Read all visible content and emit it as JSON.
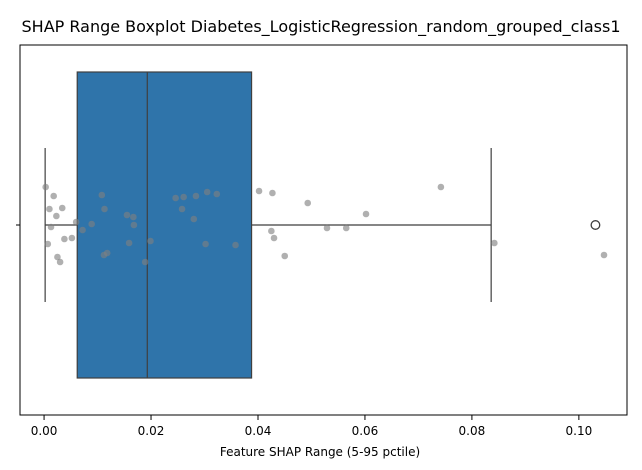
{
  "chart_data": {
    "type": "boxplot",
    "title": "SHAP Range Boxplot Diabetes_LogisticRegression_random_grouped_class1",
    "xlabel": "Feature SHAP Range (5-95 pctile)",
    "ylabel": "",
    "xlim": [
      -0.0045,
      0.109
    ],
    "x_ticks": [
      0.0,
      0.02,
      0.04,
      0.06,
      0.08,
      0.1
    ],
    "x_tick_labels": [
      "0.00",
      "0.02",
      "0.04",
      "0.06",
      "0.08",
      "0.10"
    ],
    "grid": false,
    "legend": "none",
    "box": {
      "whisker_low": 0.0002,
      "q1": 0.0062,
      "median": 0.0193,
      "q3": 0.0388,
      "whisker_high": 0.0836,
      "outliers": [
        0.1031
      ]
    },
    "points": [
      {
        "x": 0.0003,
        "y": 0.38
      },
      {
        "x": 0.0007,
        "y": -0.19
      },
      {
        "x": 0.001,
        "y": 0.16
      },
      {
        "x": 0.0013,
        "y": -0.02
      },
      {
        "x": 0.0018,
        "y": 0.29
      },
      {
        "x": 0.0023,
        "y": 0.09
      },
      {
        "x": 0.0025,
        "y": -0.32
      },
      {
        "x": 0.003,
        "y": -0.37
      },
      {
        "x": 0.0034,
        "y": 0.17
      },
      {
        "x": 0.0038,
        "y": -0.14
      },
      {
        "x": 0.0052,
        "y": -0.13
      },
      {
        "x": 0.006,
        "y": 0.03
      },
      {
        "x": 0.0072,
        "y": -0.05
      },
      {
        "x": 0.0089,
        "y": 0.01
      },
      {
        "x": 0.0108,
        "y": 0.3
      },
      {
        "x": 0.0113,
        "y": 0.16
      },
      {
        "x": 0.0112,
        "y": -0.3
      },
      {
        "x": 0.0118,
        "y": -0.28
      },
      {
        "x": 0.0155,
        "y": 0.1
      },
      {
        "x": 0.0159,
        "y": -0.18
      },
      {
        "x": 0.0167,
        "y": 0.08
      },
      {
        "x": 0.0168,
        "y": 0.0
      },
      {
        "x": 0.0189,
        "y": -0.37
      },
      {
        "x": 0.0199,
        "y": -0.16
      },
      {
        "x": 0.0246,
        "y": 0.27
      },
      {
        "x": 0.0258,
        "y": 0.16
      },
      {
        "x": 0.0261,
        "y": 0.28
      },
      {
        "x": 0.028,
        "y": 0.06
      },
      {
        "x": 0.0284,
        "y": 0.29
      },
      {
        "x": 0.0305,
        "y": 0.33
      },
      {
        "x": 0.0302,
        "y": -0.19
      },
      {
        "x": 0.0323,
        "y": 0.31
      },
      {
        "x": 0.0358,
        "y": -0.2
      },
      {
        "x": 0.0402,
        "y": 0.34
      },
      {
        "x": 0.0427,
        "y": 0.32
      },
      {
        "x": 0.0425,
        "y": -0.06
      },
      {
        "x": 0.043,
        "y": -0.13
      },
      {
        "x": 0.045,
        "y": -0.31
      },
      {
        "x": 0.0493,
        "y": 0.22
      },
      {
        "x": 0.0529,
        "y": -0.03
      },
      {
        "x": 0.0565,
        "y": -0.03
      },
      {
        "x": 0.0602,
        "y": 0.11
      },
      {
        "x": 0.0742,
        "y": 0.38
      },
      {
        "x": 0.0842,
        "y": -0.18
      },
      {
        "x": 0.1047,
        "y": -0.3
      }
    ],
    "colors": {
      "box_fill": "#2f74aa",
      "line": "#3f3f3f",
      "point": "#808080",
      "outlier_edge": "#3f3f3f",
      "axes": "#000000",
      "text": "#000000"
    }
  }
}
